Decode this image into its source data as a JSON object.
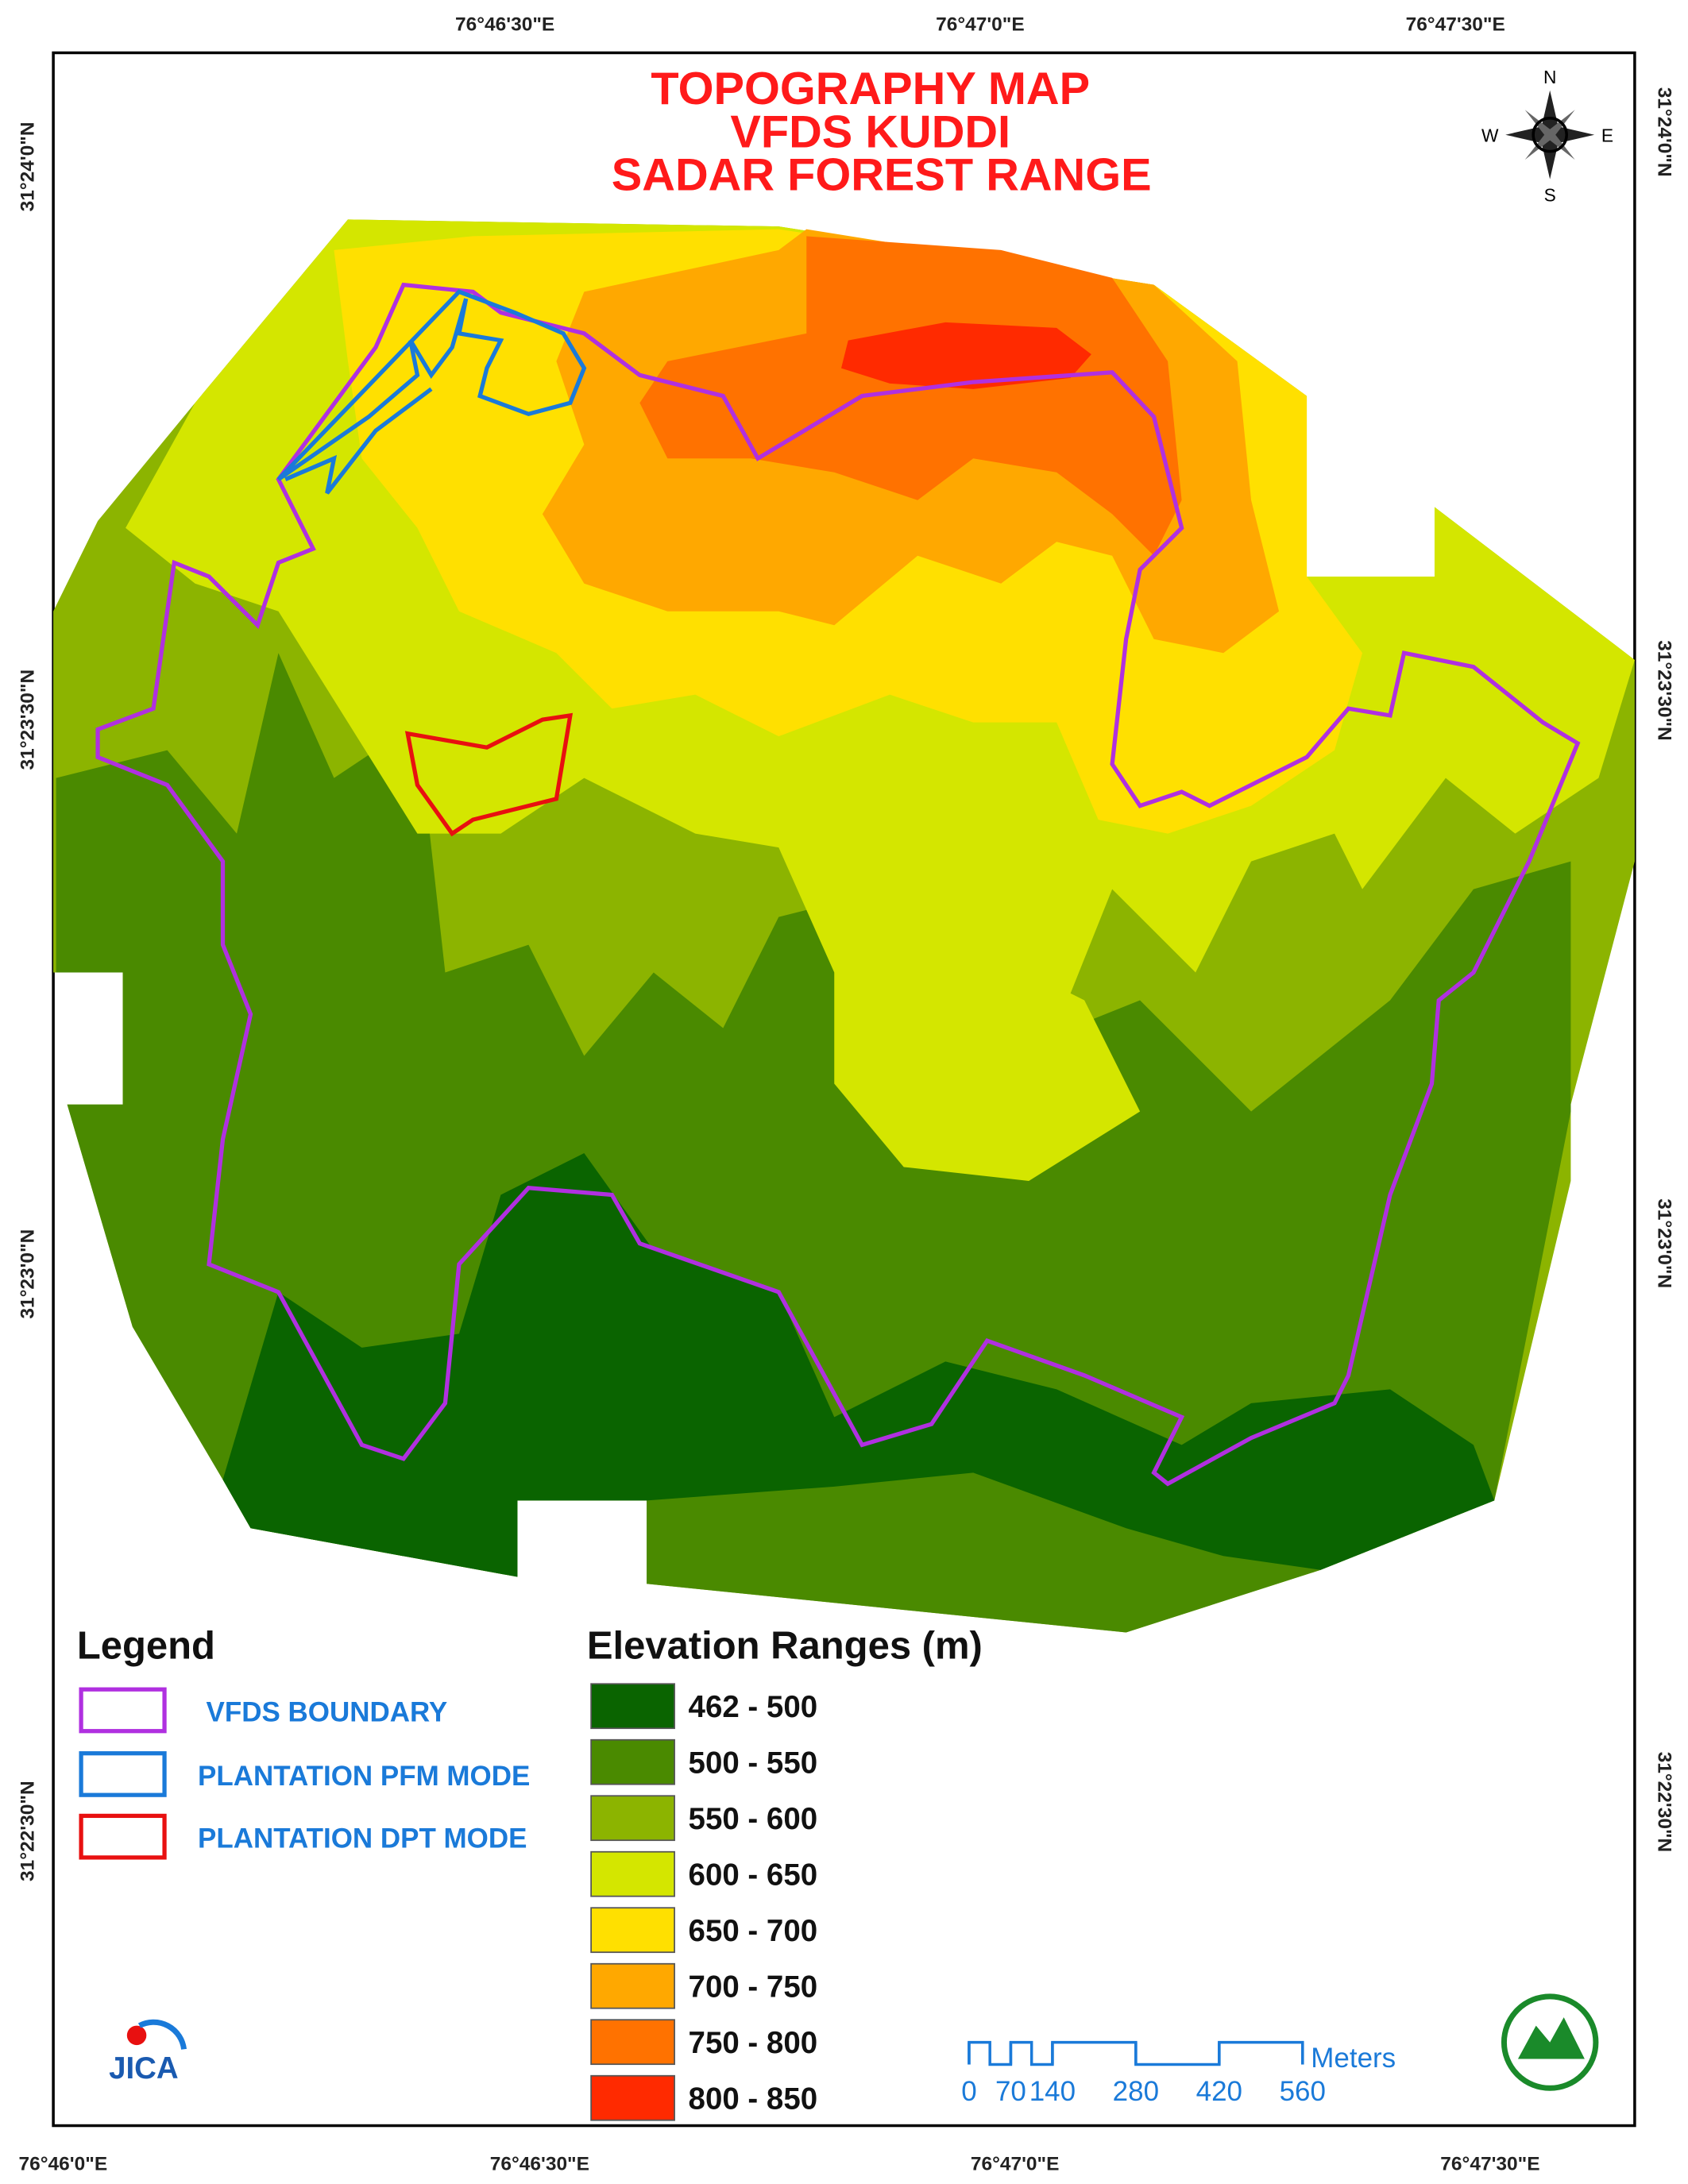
{
  "map": {
    "title": [
      "TOPOGRAPHY MAP",
      "VFDS KUDDI",
      "SADAR FOREST RANGE"
    ],
    "coords": {
      "top": [
        "76°46'30\"E",
        "76°47'0\"E",
        "76°47'30\"E"
      ],
      "bottom": [
        "76°46'0\"E",
        "76°46'30\"E",
        "76°47'0\"E",
        "76°47'30\"E"
      ],
      "left": [
        "31°24'0\"N",
        "31°23'30\"N",
        "31°23'0\"N",
        "31°22'30\"N"
      ],
      "right": [
        "31°24'0\"N",
        "31°23'30\"N",
        "31°23'0\"N",
        "31°22'30\"N"
      ]
    },
    "compass": {
      "n": "N",
      "e": "E",
      "s": "S",
      "w": "W"
    },
    "legend": {
      "title": "Legend",
      "items": [
        {
          "label": "VFDS BOUNDARY",
          "color": "#b030e0"
        },
        {
          "label": "PLANTATION PFM MODE",
          "color": "#1a7ad9"
        },
        {
          "label": "PLANTATION DPT MODE",
          "color": "#e81010"
        }
      ]
    },
    "elevation": {
      "title": "Elevation Ranges (m)",
      "ranges": [
        {
          "label": "462 - 500",
          "color": "#0a6400"
        },
        {
          "label": "500 - 550",
          "color": "#4a8a00"
        },
        {
          "label": "550 - 600",
          "color": "#8cb400"
        },
        {
          "label": "600 - 650",
          "color": "#d4e600"
        },
        {
          "label": "650 - 700",
          "color": "#ffe000"
        },
        {
          "label": "700 - 750",
          "color": "#ffa800"
        },
        {
          "label": "750 - 800",
          "color": "#ff7200"
        },
        {
          "label": "800 - 850",
          "color": "#ff2a00"
        }
      ]
    },
    "scale": {
      "values": [
        0,
        70,
        140,
        280,
        420,
        560
      ],
      "unit": "Meters"
    },
    "logo": "JICA"
  }
}
